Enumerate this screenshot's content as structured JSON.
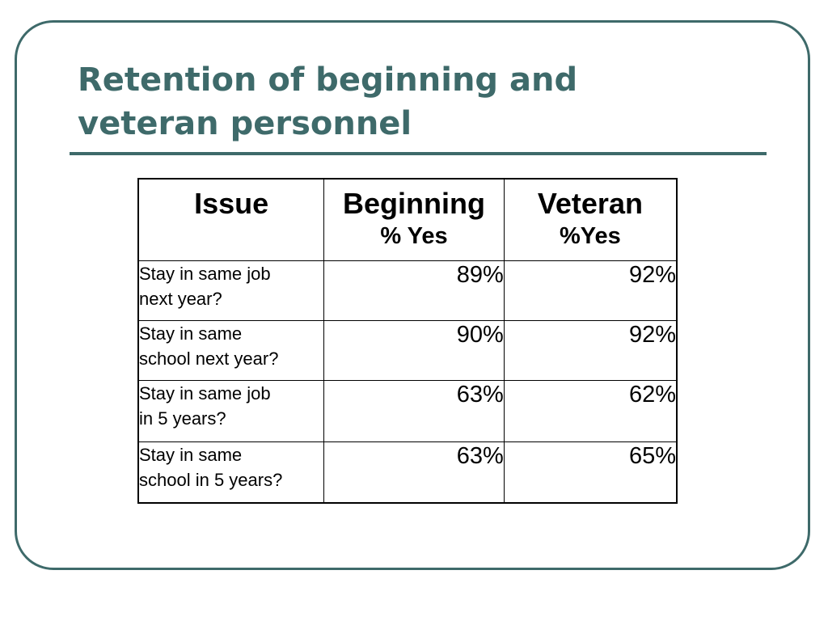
{
  "slide": {
    "title_line1": "Retention of beginning and",
    "title_line2": "veteran personnel",
    "accent_color": "#3e6a6a"
  },
  "table": {
    "headers": [
      {
        "main": "Issue",
        "sub": ""
      },
      {
        "main": "Beginning",
        "sub": "% Yes"
      },
      {
        "main": "Veteran",
        "sub": "%Yes"
      }
    ],
    "rows": [
      {
        "issue_line1": "Stay in same job",
        "issue_line2": "next year?",
        "beginning": "89%",
        "veteran": "92%"
      },
      {
        "issue_line1": "Stay in same",
        "issue_line2": "school next year?",
        "beginning": "90%",
        "veteran": "92%"
      },
      {
        "issue_line1": "Stay in same job",
        "issue_line2": "in 5 years?",
        "beginning": "63%",
        "veteran": "62%"
      },
      {
        "issue_line1": "Stay in same",
        "issue_line2": "school in 5 years?",
        "beginning": "63%",
        "veteran": "65%"
      }
    ]
  }
}
